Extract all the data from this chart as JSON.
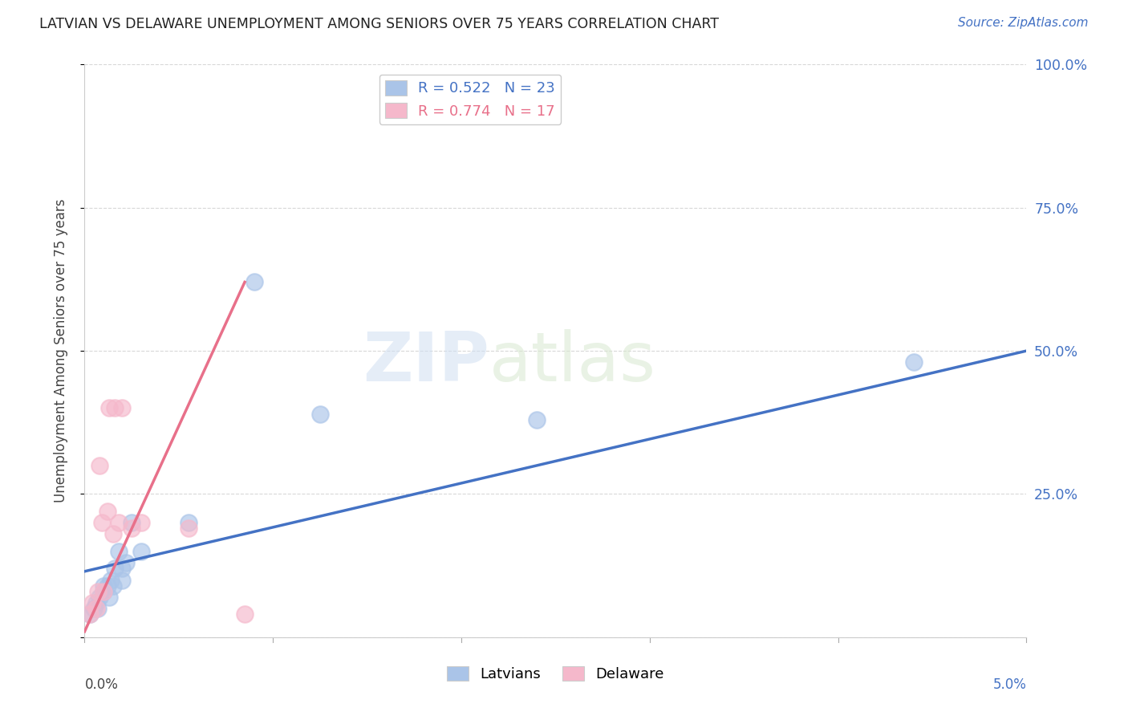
{
  "title": "LATVIAN VS DELAWARE UNEMPLOYMENT AMONG SENIORS OVER 75 YEARS CORRELATION CHART",
  "source": "Source: ZipAtlas.com",
  "ylabel": "Unemployment Among Seniors over 75 years",
  "xlim": [
    0.0,
    0.05
  ],
  "ylim": [
    0.0,
    1.0
  ],
  "latvian_color": "#aac4e8",
  "delaware_color": "#f5b8cb",
  "latvian_line_color": "#4472c4",
  "delaware_line_color": "#e8708a",
  "legend_latvian_label": "Latvians",
  "legend_delaware_label": "Delaware",
  "R_latvian": 0.522,
  "N_latvian": 23,
  "R_delaware": 0.774,
  "N_delaware": 17,
  "watermark_zip": "ZIP",
  "watermark_atlas": "atlas",
  "background_color": "#ffffff",
  "grid_color": "#d8d8d8",
  "latvian_x": [
    0.0003,
    0.0005,
    0.0006,
    0.0007,
    0.0008,
    0.001,
    0.001,
    0.0012,
    0.0013,
    0.0014,
    0.0015,
    0.0016,
    0.0018,
    0.002,
    0.002,
    0.0022,
    0.0025,
    0.003,
    0.0055,
    0.009,
    0.0125,
    0.024,
    0.044
  ],
  "latvian_y": [
    0.04,
    0.05,
    0.06,
    0.05,
    0.07,
    0.08,
    0.09,
    0.09,
    0.07,
    0.1,
    0.09,
    0.12,
    0.15,
    0.1,
    0.12,
    0.13,
    0.2,
    0.15,
    0.2,
    0.62,
    0.39,
    0.38,
    0.48
  ],
  "delaware_x": [
    0.0003,
    0.0004,
    0.0006,
    0.0007,
    0.0008,
    0.0009,
    0.001,
    0.0012,
    0.0013,
    0.0015,
    0.0016,
    0.0018,
    0.002,
    0.0025,
    0.003,
    0.0055,
    0.0085
  ],
  "delaware_y": [
    0.04,
    0.06,
    0.05,
    0.08,
    0.3,
    0.2,
    0.08,
    0.22,
    0.4,
    0.18,
    0.4,
    0.2,
    0.4,
    0.19,
    0.2,
    0.19,
    0.04
  ],
  "latvian_line_x": [
    0.0,
    0.05
  ],
  "latvian_line_y": [
    0.115,
    0.5
  ],
  "delaware_line_x": [
    0.0,
    0.0085
  ],
  "delaware_line_y": [
    0.01,
    0.62
  ]
}
